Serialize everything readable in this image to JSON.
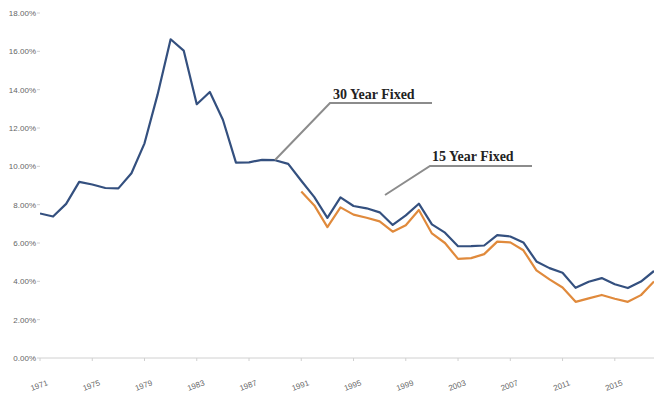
{
  "chart_data": {
    "type": "line",
    "annotations": [
      "30 Year Fixed",
      "15 Year Fixed"
    ],
    "x": [
      1971,
      1972,
      1973,
      1974,
      1975,
      1976,
      1977,
      1978,
      1979,
      1980,
      1981,
      1982,
      1983,
      1984,
      1985,
      1986,
      1987,
      1988,
      1989,
      1990,
      1991,
      1992,
      1993,
      1994,
      1995,
      1996,
      1997,
      1998,
      1999,
      2000,
      2001,
      2002,
      2003,
      2004,
      2005,
      2006,
      2007,
      2008,
      2009,
      2010,
      2011,
      2012,
      2013,
      2014,
      2015,
      2016,
      2017,
      2018
    ],
    "series": [
      {
        "name": "30 Year Fixed",
        "color": "#34507f",
        "values": [
          7.54,
          7.38,
          8.04,
          9.19,
          9.05,
          8.87,
          8.85,
          9.64,
          11.2,
          13.74,
          16.63,
          16.04,
          13.24,
          13.88,
          12.43,
          10.19,
          10.21,
          10.34,
          10.32,
          10.13,
          9.25,
          8.39,
          7.31,
          8.38,
          7.93,
          7.81,
          7.6,
          6.94,
          7.44,
          8.05,
          6.97,
          6.54,
          5.83,
          5.84,
          5.87,
          6.41,
          6.34,
          6.03,
          5.04,
          4.69,
          4.45,
          3.66,
          3.98,
          4.17,
          3.85,
          3.65,
          3.99,
          4.54
        ]
      },
      {
        "name": "15 Year Fixed",
        "color": "#e08a3c",
        "values": [
          null,
          null,
          null,
          null,
          null,
          null,
          null,
          null,
          null,
          null,
          null,
          null,
          null,
          null,
          null,
          null,
          null,
          null,
          null,
          null,
          8.69,
          7.96,
          6.83,
          7.86,
          7.48,
          7.32,
          7.13,
          6.59,
          6.93,
          7.72,
          6.5,
          6.0,
          5.17,
          5.21,
          5.42,
          6.07,
          6.03,
          5.62,
          4.57,
          4.1,
          3.68,
          2.93,
          3.11,
          3.29,
          3.09,
          2.93,
          3.28,
          3.99
        ]
      }
    ],
    "xlim": [
      1971,
      2018
    ],
    "xticks": [
      1971,
      1975,
      1979,
      1983,
      1987,
      1991,
      1995,
      1999,
      2003,
      2007,
      2011,
      2015
    ],
    "ylim": [
      0,
      18
    ],
    "yticks": [
      {
        "value": 0,
        "label": "0.00%"
      },
      {
        "value": 2,
        "label": "2.00%"
      },
      {
        "value": 4,
        "label": "4.00%"
      },
      {
        "value": 6,
        "label": "6.00%"
      },
      {
        "value": 8,
        "label": "8.00%"
      },
      {
        "value": 10,
        "label": "10.00%"
      },
      {
        "value": 12,
        "label": "12.00%"
      },
      {
        "value": 14,
        "label": "14.00%"
      },
      {
        "value": 16,
        "label": "16.00%"
      },
      {
        "value": 18,
        "label": "18.00%"
      }
    ],
    "grid": false,
    "legend": "none"
  }
}
